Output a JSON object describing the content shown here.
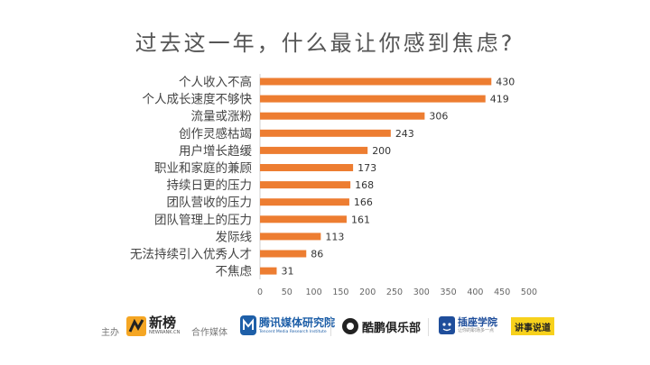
{
  "chart_data": {
    "type": "bar",
    "orientation": "horizontal",
    "title": "过去这一年，什么最让你感到焦虑?",
    "categories": [
      "个人收入不高",
      "个人成长速度不够快",
      "流量或涨粉",
      "创作灵感枯竭",
      "用户增长趋缓",
      "职业和家庭的兼顾",
      "持续日更的压力",
      "团队营收的压力",
      "团队管理上的压力",
      "发际线",
      "无法持续引入优秀人才",
      "不焦虑"
    ],
    "values": [
      430,
      419,
      306,
      243,
      200,
      173,
      168,
      166,
      161,
      113,
      86,
      31
    ],
    "xlim": [
      0,
      500
    ],
    "xticks": [
      0,
      50,
      100,
      150,
      200,
      250,
      300,
      350,
      400,
      450,
      500
    ],
    "xticks_labels": [
      "0",
      "50",
      "100",
      "150",
      "200",
      "250",
      "300",
      "350",
      "400",
      "450",
      "500"
    ],
    "grid": false,
    "bar_color": "#ED7D31"
  },
  "footer": {
    "host_label": "主办",
    "partner_label": "合作媒体",
    "logos": {
      "xinbang": "新榜",
      "xinbang_sub": "NEWRANK.CN",
      "tencent": "腾讯媒体研究院",
      "tencent_sub": "Tencent Media Research Institute",
      "kupeng": "酷鹏俱乐部",
      "chazuo": "插座学院",
      "chazuo_sub": "让你的职场多一点",
      "hongbao": "讲事说道"
    }
  }
}
